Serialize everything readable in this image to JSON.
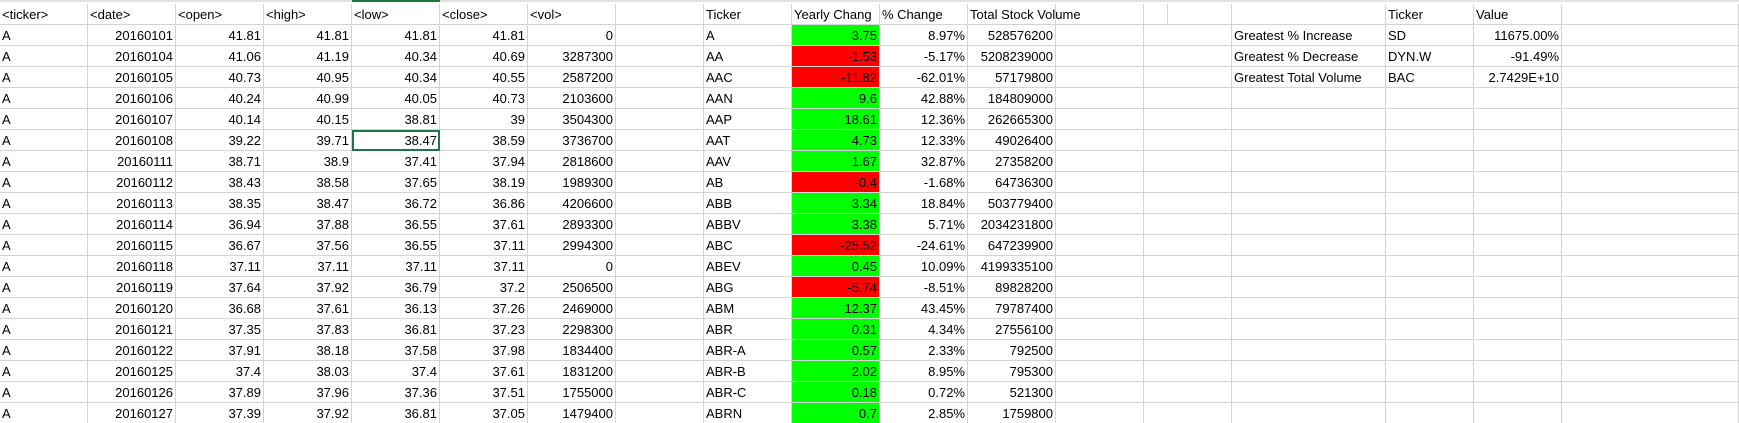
{
  "colors": {
    "positive": "#00ff00",
    "negative": "#ff0000",
    "selection": "#217346",
    "gridline": "#d4d4d4"
  },
  "selected_cell": {
    "row": 6,
    "col": 4
  },
  "headers": [
    "<ticker>",
    "<date>",
    "<open>",
    "<high>",
    "<low>",
    "<close>",
    "<vol>",
    "",
    "Ticker",
    "Yearly Chang",
    "% Change",
    "Total Stock Volume",
    "",
    "",
    "",
    "Ticker",
    "Value"
  ],
  "data_rows": [
    [
      "A",
      "20160101",
      "41.81",
      "41.81",
      "41.81",
      "41.81",
      "0"
    ],
    [
      "A",
      "20160104",
      "41.06",
      "41.19",
      "40.34",
      "40.69",
      "3287300"
    ],
    [
      "A",
      "20160105",
      "40.73",
      "40.95",
      "40.34",
      "40.55",
      "2587200"
    ],
    [
      "A",
      "20160106",
      "40.24",
      "40.99",
      "40.05",
      "40.73",
      "2103600"
    ],
    [
      "A",
      "20160107",
      "40.14",
      "40.15",
      "38.81",
      "39",
      "3504300"
    ],
    [
      "A",
      "20160108",
      "39.22",
      "39.71",
      "38.47",
      "38.59",
      "3736700"
    ],
    [
      "A",
      "20160111",
      "38.71",
      "38.9",
      "37.41",
      "37.94",
      "2818600"
    ],
    [
      "A",
      "20160112",
      "38.43",
      "38.58",
      "37.65",
      "38.19",
      "1989300"
    ],
    [
      "A",
      "20160113",
      "38.35",
      "38.47",
      "36.72",
      "36.86",
      "4206600"
    ],
    [
      "A",
      "20160114",
      "36.94",
      "37.88",
      "36.55",
      "37.61",
      "2893300"
    ],
    [
      "A",
      "20160115",
      "36.67",
      "37.56",
      "36.55",
      "37.11",
      "2994300"
    ],
    [
      "A",
      "20160118",
      "37.11",
      "37.11",
      "37.11",
      "37.11",
      "0"
    ],
    [
      "A",
      "20160119",
      "37.64",
      "37.92",
      "36.79",
      "37.2",
      "2506500"
    ],
    [
      "A",
      "20160120",
      "36.68",
      "37.61",
      "36.13",
      "37.26",
      "2469000"
    ],
    [
      "A",
      "20160121",
      "37.35",
      "37.83",
      "36.81",
      "37.23",
      "2298300"
    ],
    [
      "A",
      "20160122",
      "37.91",
      "38.18",
      "37.58",
      "37.98",
      "1834400"
    ],
    [
      "A",
      "20160125",
      "37.4",
      "38.03",
      "37.4",
      "37.61",
      "1831200"
    ],
    [
      "A",
      "20160126",
      "37.89",
      "37.96",
      "37.36",
      "37.51",
      "1755000"
    ],
    [
      "A",
      "20160127",
      "37.39",
      "37.92",
      "36.81",
      "37.05",
      "1479400"
    ]
  ],
  "summary_rows": [
    {
      "ticker": "A",
      "yearly_change": "3.75",
      "pct_change": "8.97%",
      "volume": "528576200",
      "status": "positive"
    },
    {
      "ticker": "AA",
      "yearly_change": "-1.53",
      "pct_change": "-5.17%",
      "volume": "5208239000",
      "status": "negative"
    },
    {
      "ticker": "AAC",
      "yearly_change": "-11.82",
      "pct_change": "-62.01%",
      "volume": "57179800",
      "status": "negative"
    },
    {
      "ticker": "AAN",
      "yearly_change": "9.6",
      "pct_change": "42.88%",
      "volume": "184809000",
      "status": "positive"
    },
    {
      "ticker": "AAP",
      "yearly_change": "18.61",
      "pct_change": "12.36%",
      "volume": "262665300",
      "status": "positive"
    },
    {
      "ticker": "AAT",
      "yearly_change": "4.73",
      "pct_change": "12.33%",
      "volume": "49026400",
      "status": "positive"
    },
    {
      "ticker": "AAV",
      "yearly_change": "1.67",
      "pct_change": "32.87%",
      "volume": "27358200",
      "status": "positive"
    },
    {
      "ticker": "AB",
      "yearly_change": "-0.4",
      "pct_change": "-1.68%",
      "volume": "64736300",
      "status": "negative"
    },
    {
      "ticker": "ABB",
      "yearly_change": "3.34",
      "pct_change": "18.84%",
      "volume": "503779400",
      "status": "positive"
    },
    {
      "ticker": "ABBV",
      "yearly_change": "3.38",
      "pct_change": "5.71%",
      "volume": "2034231800",
      "status": "positive"
    },
    {
      "ticker": "ABC",
      "yearly_change": "-25.52",
      "pct_change": "-24.61%",
      "volume": "647239900",
      "status": "negative"
    },
    {
      "ticker": "ABEV",
      "yearly_change": "0.45",
      "pct_change": "10.09%",
      "volume": "4199335100",
      "status": "positive"
    },
    {
      "ticker": "ABG",
      "yearly_change": "-5.74",
      "pct_change": "-8.51%",
      "volume": "89828200",
      "status": "negative"
    },
    {
      "ticker": "ABM",
      "yearly_change": "12.37",
      "pct_change": "43.45%",
      "volume": "79787400",
      "status": "positive"
    },
    {
      "ticker": "ABR",
      "yearly_change": "0.31",
      "pct_change": "4.34%",
      "volume": "27556100",
      "status": "positive"
    },
    {
      "ticker": "ABR-A",
      "yearly_change": "0.57",
      "pct_change": "2.33%",
      "volume": "792500",
      "status": "positive"
    },
    {
      "ticker": "ABR-B",
      "yearly_change": "2.02",
      "pct_change": "8.95%",
      "volume": "795300",
      "status": "positive"
    },
    {
      "ticker": "ABR-C",
      "yearly_change": "0.18",
      "pct_change": "0.72%",
      "volume": "521300",
      "status": "positive"
    },
    {
      "ticker": "ABRN",
      "yearly_change": "0.7",
      "pct_change": "2.85%",
      "volume": "1759800",
      "status": "positive"
    }
  ],
  "greatest": [
    {
      "label": "Greatest % Increase",
      "ticker": "SD",
      "value": "11675.00%"
    },
    {
      "label": "Greatest % Decrease",
      "ticker": "DYN.W",
      "value": "-91.49%"
    },
    {
      "label": "Greatest Total Volume",
      "ticker": "BAC",
      "value": "2.7429E+10"
    }
  ]
}
